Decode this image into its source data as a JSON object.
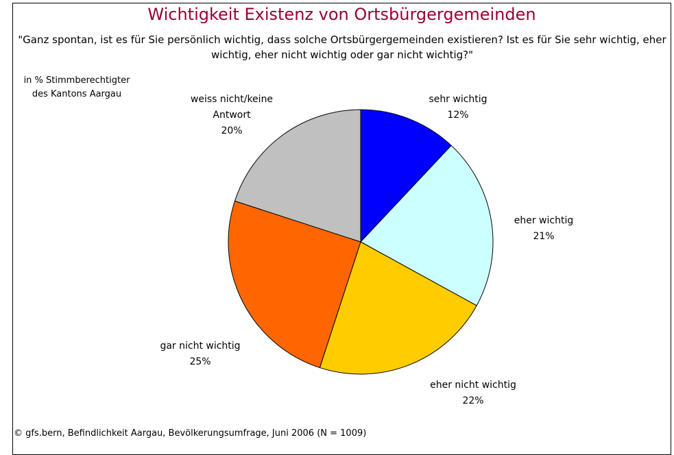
{
  "chart_data": {
    "type": "pie",
    "title": "Wichtigkeit Existenz von Ortsbürgergemeinden",
    "subtitle": "\"Ganz spontan, ist es für Sie persönlich wichtig, dass solche Ortsbürgergemeinden existieren? Ist es für Sie sehr wichtig, eher wichtig, eher nicht wichtig oder gar nicht wichtig?\"",
    "note": "in % Stimmberechtigter des Kantons Aargau",
    "source": "© gfs.bern, Befindlichkeit Aargau, Bevölkerungsumfrage, Juni 2006 (N = 1009)",
    "categories": [
      "sehr wichtig",
      "eher wichtig",
      "eher nicht wichtig",
      "gar nicht wichtig",
      "weiss nicht/keine Antwort"
    ],
    "values": [
      12,
      21,
      22,
      25,
      20
    ],
    "value_labels": [
      "12%",
      "21%",
      "22%",
      "25%",
      "20%"
    ],
    "colors": [
      "#0000ff",
      "#ccffff",
      "#ffcc00",
      "#ff6600",
      "#c0c0c0"
    ]
  }
}
